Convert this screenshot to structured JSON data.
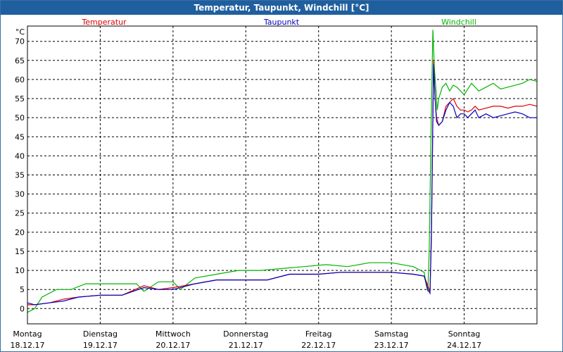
{
  "window": {
    "title": "Temperatur, Taupunkt, Windchill [°C]"
  },
  "colors": {
    "temperatur": "#e00000",
    "taupunkt": "#0000c0",
    "windchill": "#00b400",
    "titlebar": "#1f5f9e"
  },
  "chart_data": {
    "type": "line",
    "title": "Temperatur, Taupunkt, Windchill [°C]",
    "ylabel": "°C",
    "ylim": [
      -4,
      74
    ],
    "yticks": [
      0,
      5,
      10,
      15,
      20,
      25,
      30,
      35,
      40,
      45,
      50,
      55,
      60,
      65,
      70
    ],
    "xlim": [
      0,
      7
    ],
    "grid": true,
    "legend_placement": "top",
    "xticks": [
      {
        "day": "Montag",
        "date": "18.12.17"
      },
      {
        "day": "Dienstag",
        "date": "19.12.17"
      },
      {
        "day": "Mittwoch",
        "date": "20.12.17"
      },
      {
        "day": "Donnerstag",
        "date": "21.12.17"
      },
      {
        "day": "Freitag",
        "date": "22.12.17"
      },
      {
        "day": "Samstag",
        "date": "23.12.17"
      },
      {
        "day": "Sonntag",
        "date": "24.12.17"
      }
    ],
    "series": [
      {
        "name": "Temperatur",
        "color": "#e00000",
        "x": [
          0,
          0.1,
          0.3,
          0.5,
          0.7,
          1.0,
          1.3,
          1.6,
          1.8,
          2.0,
          2.3,
          2.6,
          3.0,
          3.3,
          3.6,
          3.7,
          4.0,
          4.3,
          4.6,
          5.0,
          5.3,
          5.45,
          5.5,
          5.53,
          5.55,
          5.58,
          5.6,
          5.62,
          5.65,
          5.7,
          5.75,
          5.8,
          5.85,
          5.9,
          5.95,
          6.0,
          6.05,
          6.1,
          6.15,
          6.2,
          6.3,
          6.4,
          6.5,
          6.6,
          6.7,
          6.8,
          6.9,
          7.0
        ],
        "y": [
          1,
          1,
          1.5,
          2.5,
          3,
          3.5,
          3.5,
          6,
          5,
          5.5,
          6.5,
          7.5,
          7.5,
          7.5,
          9,
          9,
          9,
          9.5,
          9.5,
          9.5,
          9,
          8.5,
          6,
          4.5,
          18,
          65,
          55,
          50,
          48,
          49,
          53,
          54,
          55,
          53,
          52,
          52,
          51.5,
          52,
          53,
          52,
          52.5,
          53,
          53,
          52.5,
          53,
          53,
          53.5,
          53
        ]
      },
      {
        "name": "Taupunkt",
        "color": "#0000c0",
        "x": [
          0,
          0.1,
          0.3,
          0.5,
          0.7,
          1.0,
          1.3,
          1.6,
          1.8,
          2.0,
          2.3,
          2.6,
          3.0,
          3.3,
          3.6,
          3.7,
          4.0,
          4.3,
          4.6,
          5.0,
          5.3,
          5.45,
          5.5,
          5.53,
          5.55,
          5.58,
          5.6,
          5.62,
          5.65,
          5.7,
          5.75,
          5.8,
          5.85,
          5.9,
          5.95,
          6.0,
          6.05,
          6.1,
          6.15,
          6.2,
          6.3,
          6.4,
          6.5,
          6.6,
          6.7,
          6.8,
          6.9,
          7.0
        ],
        "y": [
          1.5,
          1,
          1.5,
          2,
          3,
          3.5,
          3.5,
          5.5,
          5,
          5,
          6.5,
          7.5,
          7.5,
          7.5,
          9,
          9,
          9,
          9.5,
          9.5,
          9.5,
          9,
          8.5,
          5,
          4,
          20,
          64,
          55,
          49,
          48,
          49,
          52,
          54,
          53,
          50,
          51,
          51,
          50,
          51,
          52,
          50,
          51,
          50,
          50.5,
          51,
          51.5,
          51,
          50,
          50
        ]
      },
      {
        "name": "Windchill",
        "color": "#00b400",
        "x": [
          0,
          0.1,
          0.2,
          0.4,
          0.6,
          0.8,
          1.0,
          1.2,
          1.5,
          1.6,
          1.8,
          2.0,
          2.1,
          2.3,
          2.6,
          2.9,
          3.2,
          3.5,
          3.8,
          4.1,
          4.4,
          4.7,
          5.0,
          5.3,
          5.4,
          5.45,
          5.48,
          5.5,
          5.52,
          5.55,
          5.57,
          5.59,
          5.61,
          5.63,
          5.65,
          5.7,
          5.75,
          5.8,
          5.85,
          5.9,
          6.0,
          6.1,
          6.2,
          6.3,
          6.4,
          6.5,
          6.6,
          6.7,
          6.8,
          6.9,
          7.0
        ],
        "y": [
          -1,
          0,
          3,
          5,
          5,
          6.5,
          6.5,
          6.5,
          6.5,
          4.5,
          7,
          7,
          5,
          8,
          9,
          10,
          10,
          10.5,
          11,
          11.5,
          11,
          12,
          12,
          11,
          10,
          9.5,
          6,
          4.5,
          15,
          52,
          73,
          63,
          58,
          52,
          55,
          58,
          59,
          57,
          58.5,
          58,
          56,
          59,
          57,
          58,
          59,
          57.5,
          58,
          58.5,
          59,
          60,
          59.5
        ]
      }
    ]
  }
}
